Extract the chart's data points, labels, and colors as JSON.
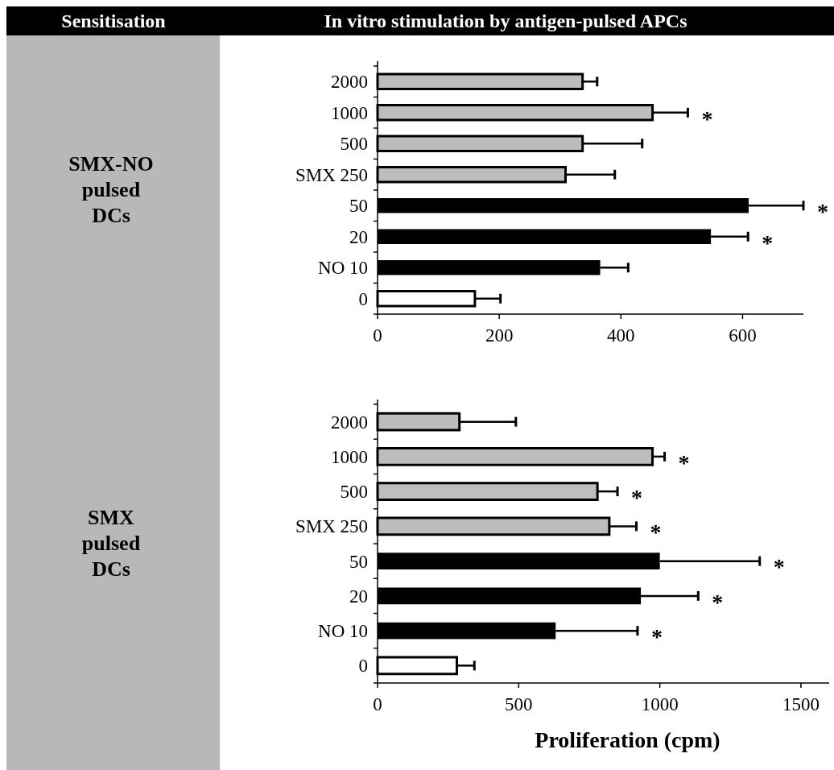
{
  "chart_data": [
    {
      "type": "bar",
      "orientation": "horizontal",
      "ylabel": "SMX-NO pulsed DCs",
      "annotations": [
        "Sensitisation",
        "In vitro stimulation by antigen-pulsed APCs",
        {
          "text": "*",
          "x": 510,
          "y": "1000"
        },
        {
          "text": "*",
          "x": 700,
          "y": "50"
        },
        {
          "text": "*",
          "x": 609,
          "y": "20"
        }
      ],
      "categories": [
        "2000",
        "1000",
        "500",
        "SMX 250",
        "50",
        "20",
        "NO 10",
        "0"
      ],
      "values": [
        337,
        452,
        337,
        309,
        610,
        548,
        366,
        160
      ],
      "errors": [
        [
          337,
          361
        ],
        [
          452,
          510
        ],
        [
          337,
          435
        ],
        [
          309,
          390
        ],
        [
          610,
          700
        ],
        [
          548,
          609
        ],
        [
          366,
          412
        ],
        [
          160,
          202
        ]
      ],
      "colors": [
        "#bdbdbd",
        "#bdbdbd",
        "#bdbdbd",
        "#bdbdbd",
        "#000000",
        "#000000",
        "#000000",
        "#ffffff"
      ],
      "xlim": [
        0,
        700
      ],
      "xticks": [
        0,
        200,
        400,
        600
      ]
    },
    {
      "type": "bar",
      "orientation": "horizontal",
      "ylabel": "SMX pulsed DCs",
      "xlabel": "Proliferation (cpm)",
      "annotations": [
        {
          "text": "*",
          "x": 1017,
          "y": "1000"
        },
        {
          "text": "*",
          "x": 850,
          "y": "500"
        },
        {
          "text": "*",
          "x": 917,
          "y": "SMX 250"
        },
        {
          "text": "*",
          "x": 1354,
          "y": "50"
        },
        {
          "text": "*",
          "x": 1136,
          "y": "20"
        },
        {
          "text": "*",
          "x": 921,
          "y": "NO 10"
        }
      ],
      "categories": [
        "2000",
        "1000",
        "500",
        "SMX 250",
        "50",
        "20",
        "NO 10",
        "0"
      ],
      "values": [
        290,
        974,
        779,
        821,
        1000,
        933,
        631,
        281
      ],
      "errors": [
        [
          290,
          490
        ],
        [
          974,
          1017
        ],
        [
          779,
          850
        ],
        [
          821,
          917
        ],
        [
          1000,
          1354
        ],
        [
          933,
          1136
        ],
        [
          631,
          921
        ],
        [
          281,
          343
        ]
      ],
      "colors": [
        "#bdbdbd",
        "#bdbdbd",
        "#bdbdbd",
        "#bdbdbd",
        "#000000",
        "#000000",
        "#000000",
        "#ffffff"
      ],
      "xlim": [
        0,
        1600
      ],
      "xticks": [
        0,
        500,
        1000,
        1500
      ]
    }
  ]
}
